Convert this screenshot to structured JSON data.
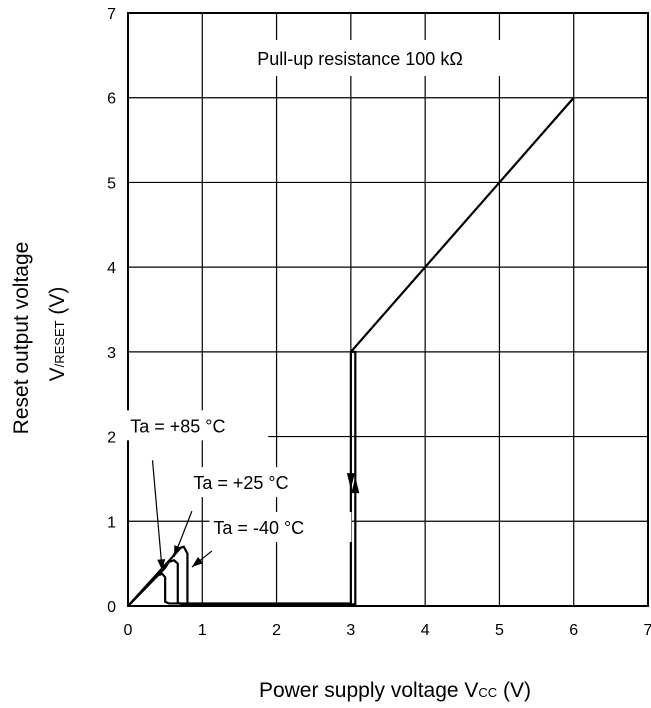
{
  "chart_data": {
    "type": "line",
    "xlim": [
      0,
      7
    ],
    "ylim": [
      0,
      7
    ],
    "x_ticks": [
      "0",
      "1",
      "2",
      "3",
      "4",
      "5",
      "6",
      "7"
    ],
    "y_ticks": [
      "0",
      "1",
      "2",
      "3",
      "4",
      "5",
      "6",
      "7"
    ],
    "grid": true,
    "xlabel": {
      "main": "Power supply voltage V",
      "sub": "CC",
      "unit": " (V)"
    },
    "ylabel": {
      "line1": "Reset output voltage",
      "main": "V",
      "sub": "/RESET",
      "unit": " (V)"
    },
    "annotation": "Pull-up resistance 100 kΩ",
    "series": [
      {
        "name": "Ta = +85 °C",
        "x": [
          0,
          0.4,
          0.46,
          0.5,
          0.5,
          0.55,
          3.0,
          3.0,
          4.0,
          5.0,
          6.0
        ],
        "y": [
          0,
          0.36,
          0.38,
          0.34,
          0.05,
          0.03,
          0.03,
          3.0,
          4.0,
          5.0,
          6.0
        ]
      },
      {
        "name": "Ta = +25 °C",
        "x": [
          0,
          0.5,
          0.55,
          0.62,
          0.67,
          0.67,
          0.72,
          3.05
        ],
        "y": [
          0,
          0.45,
          0.52,
          0.54,
          0.5,
          0.04,
          0.02,
          0.02
        ]
      },
      {
        "name": "Ta = -40 °C",
        "x": [
          0,
          0.6,
          0.68,
          0.75,
          0.8,
          0.8,
          0.86,
          3.06,
          3.06,
          3.0
        ],
        "y": [
          0,
          0.58,
          0.68,
          0.7,
          0.62,
          0.03,
          0.01,
          0.01,
          3.0,
          3.0
        ]
      }
    ],
    "labels": [
      {
        "text": "Ta = +85 °C",
        "x": 0.03,
        "y": 2.05
      },
      {
        "text": "Ta = +25 °C",
        "x": 0.88,
        "y": 1.38
      },
      {
        "text": "Ta = -40 °C",
        "x": 1.15,
        "y": 0.85
      }
    ],
    "arrows": [
      {
        "x": 3.0,
        "y": 1.45,
        "dir": "down"
      },
      {
        "x": 3.06,
        "y": 1.45,
        "dir": "up"
      }
    ]
  }
}
